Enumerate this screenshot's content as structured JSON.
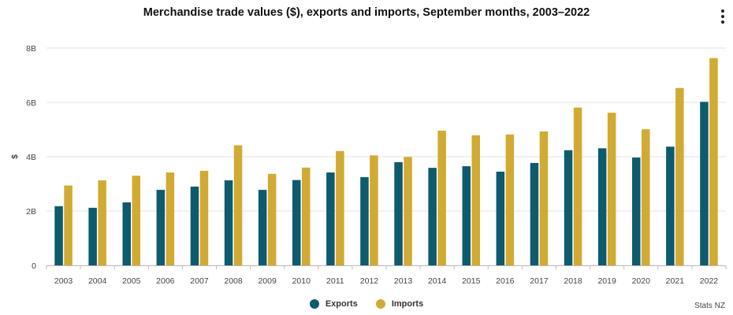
{
  "menu_icon": "more-vertical-icon",
  "chart_data": {
    "type": "bar",
    "title": "Merchandise trade values ($), exports and imports, September months, 2003–2022",
    "ylabel": "$",
    "xlabel": "",
    "ylim": [
      0,
      8
    ],
    "y_ticks": [
      0,
      2,
      4,
      6,
      8
    ],
    "y_tick_labels": [
      "0",
      "2B",
      "4B",
      "6B",
      "8B"
    ],
    "grid": true,
    "legend_position": "bottom",
    "categories": [
      "2003",
      "2004",
      "2005",
      "2006",
      "2007",
      "2008",
      "2009",
      "2010",
      "2011",
      "2012",
      "2013",
      "2014",
      "2015",
      "2016",
      "2017",
      "2018",
      "2019",
      "2020",
      "2021",
      "2022"
    ],
    "series": [
      {
        "name": "Exports",
        "color": "#0e5a6e",
        "values": [
          2.18,
          2.12,
          2.32,
          2.78,
          2.9,
          3.13,
          2.78,
          3.14,
          3.42,
          3.25,
          3.8,
          3.59,
          3.65,
          3.45,
          3.77,
          4.24,
          4.31,
          3.97,
          4.37,
          6.02
        ]
      },
      {
        "name": "Imports",
        "color": "#d1aa33",
        "values": [
          2.94,
          3.13,
          3.3,
          3.42,
          3.48,
          4.42,
          3.37,
          3.6,
          4.21,
          4.05,
          3.99,
          4.96,
          4.79,
          4.82,
          4.93,
          5.81,
          5.62,
          5.01,
          6.53,
          7.63
        ]
      }
    ],
    "credit": "Stats NZ"
  }
}
